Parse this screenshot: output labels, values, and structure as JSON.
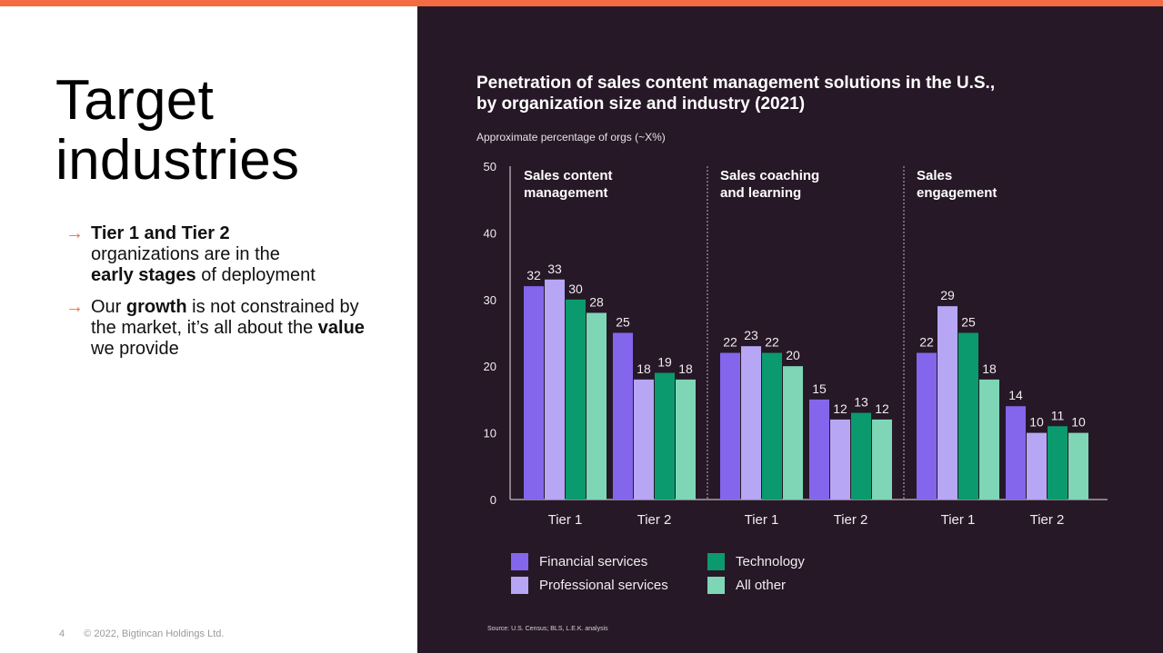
{
  "slide": {
    "title_line1": "Target",
    "title_line2": "industries",
    "bullet1": {
      "bold1": "Tier 1 and Tier 2",
      "text1": "organizations are in the",
      "bold2": "early stages",
      "text2": "of deployment"
    },
    "bullet2": {
      "text1": "Our",
      "bold1": "growth",
      "text2": "is not constrained by the market, it’s all about the",
      "bold2": "value",
      "text3": "we provide"
    },
    "arrow_glyph": "→",
    "footer_page": "4",
    "footer_copyright": "© 2022, Bigtincan Holdings Ltd."
  },
  "colors": {
    "accent": "#f26b43",
    "panel": "#261826",
    "financial": "#8466ec",
    "professional": "#b6a6f4",
    "technology": "#0b9a6d",
    "other": "#7ed6b7"
  },
  "chart_data": {
    "type": "bar",
    "title_line1": "Penetration of sales content management solutions in the U.S.,",
    "title_line2": "by organization size and industry (2021)",
    "ylabel": "Approximate percentage of orgs  (~X%)",
    "ylim": [
      0,
      50
    ],
    "yticks": [
      0,
      10,
      20,
      30,
      40,
      50
    ],
    "source": "Source: U.S. Census; BLS, L.E.K. analysis",
    "series_names": [
      "Financial services",
      "Professional services",
      "Technology",
      "All other"
    ],
    "panels": [
      {
        "name_line1": "Sales content",
        "name_line2": "management",
        "groups": [
          {
            "label": "Tier 1",
            "values": [
              32,
              33,
              30,
              28
            ]
          },
          {
            "label": "Tier 2",
            "values": [
              25,
              18,
              19,
              18
            ]
          }
        ]
      },
      {
        "name_line1": "Sales coaching",
        "name_line2": "and learning",
        "groups": [
          {
            "label": "Tier 1",
            "values": [
              22,
              23,
              22,
              20
            ]
          },
          {
            "label": "Tier 2",
            "values": [
              15,
              12,
              13,
              12
            ]
          }
        ]
      },
      {
        "name_line1": "Sales",
        "name_line2": "engagement",
        "groups": [
          {
            "label": "Tier 1",
            "values": [
              22,
              29,
              25,
              18
            ]
          },
          {
            "label": "Tier 2",
            "values": [
              14,
              10,
              11,
              10
            ]
          }
        ]
      }
    ]
  }
}
